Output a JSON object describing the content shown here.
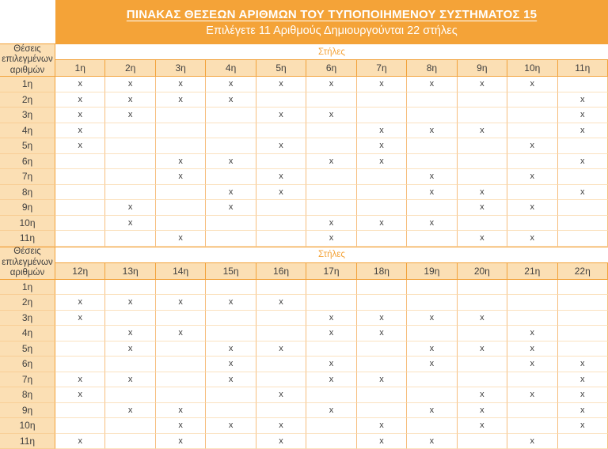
{
  "page": {
    "title": "ΠΙΝΑΚΑΣ ΘΕΣΕΩΝ ΑΡΙΘΜΩΝ ΤΟΥ ΤΥΠΟΠΟΙΗΜΕΝΟΥ ΣΥΣΤΗΜΑΤΟΣ 15",
    "subtitle": "Επιλέγετε 11 Αριθμούς Δημιουργούνται 22 στήλες"
  },
  "labels": {
    "corner": "Θέσεις επιλεγμένων αριθμών",
    "columns_group": "Στήλες",
    "mark": "x"
  },
  "colors": {
    "orange": "#F4A338",
    "header_fill": "#FBDFB4",
    "text_dark": "#3F3F3F",
    "white": "#FFFFFF"
  },
  "tables": [
    {
      "column_headers": [
        "1η",
        "2η",
        "3η",
        "4η",
        "5η",
        "6η",
        "7η",
        "8η",
        "9η",
        "10η",
        "11η"
      ],
      "rows": [
        {
          "header": "1η",
          "cells": [
            "x",
            "x",
            "x",
            "x",
            "x",
            "x",
            "x",
            "x",
            "x",
            "x",
            ""
          ]
        },
        {
          "header": "2η",
          "cells": [
            "x",
            "x",
            "x",
            "x",
            "",
            "",
            "",
            "",
            "",
            "",
            "x"
          ]
        },
        {
          "header": "3η",
          "cells": [
            "x",
            "x",
            "",
            "",
            "x",
            "x",
            "",
            "",
            "",
            "",
            "x"
          ]
        },
        {
          "header": "4η",
          "cells": [
            "x",
            "",
            "",
            "",
            "",
            "",
            "x",
            "x",
            "x",
            "",
            "x"
          ]
        },
        {
          "header": "5η",
          "cells": [
            "x",
            "",
            "",
            "",
            "x",
            "",
            "x",
            "",
            "",
            "x",
            ""
          ]
        },
        {
          "header": "6η",
          "cells": [
            "",
            "",
            "x",
            "x",
            "",
            "x",
            "x",
            "",
            "",
            "",
            "x"
          ]
        },
        {
          "header": "7η",
          "cells": [
            "",
            "",
            "x",
            "",
            "x",
            "",
            "",
            "x",
            "",
            "x",
            ""
          ]
        },
        {
          "header": "8η",
          "cells": [
            "",
            "",
            "",
            "x",
            "x",
            "",
            "",
            "x",
            "x",
            "",
            "x"
          ]
        },
        {
          "header": "9η",
          "cells": [
            "",
            "x",
            "",
            "x",
            "",
            "",
            "",
            "",
            "x",
            "x",
            ""
          ]
        },
        {
          "header": "10η",
          "cells": [
            "",
            "x",
            "",
            "",
            "",
            "x",
            "x",
            "x",
            "",
            "",
            ""
          ]
        },
        {
          "header": "11η",
          "cells": [
            "",
            "",
            "x",
            "",
            "",
            "x",
            "",
            "",
            "x",
            "x",
            ""
          ]
        }
      ]
    },
    {
      "column_headers": [
        "12η",
        "13η",
        "14η",
        "15η",
        "16η",
        "17η",
        "18η",
        "19η",
        "20η",
        "21η",
        "22η"
      ],
      "rows": [
        {
          "header": "1η",
          "cells": [
            "",
            "",
            "",
            "",
            "",
            "",
            "",
            "",
            "",
            "",
            ""
          ]
        },
        {
          "header": "2η",
          "cells": [
            "x",
            "x",
            "x",
            "x",
            "x",
            "",
            "",
            "",
            "",
            "",
            ""
          ]
        },
        {
          "header": "3η",
          "cells": [
            "x",
            "",
            "",
            "",
            "",
            "x",
            "x",
            "x",
            "x",
            "",
            ""
          ]
        },
        {
          "header": "4η",
          "cells": [
            "",
            "x",
            "x",
            "",
            "",
            "x",
            "x",
            "",
            "",
            "x",
            ""
          ]
        },
        {
          "header": "5η",
          "cells": [
            "",
            "x",
            "",
            "x",
            "x",
            "",
            "",
            "x",
            "x",
            "x",
            ""
          ]
        },
        {
          "header": "6η",
          "cells": [
            "",
            "",
            "",
            "x",
            "",
            "x",
            "",
            "x",
            "",
            "x",
            "x"
          ]
        },
        {
          "header": "7η",
          "cells": [
            "x",
            "x",
            "",
            "x",
            "",
            "x",
            "x",
            "",
            "",
            "",
            "x"
          ]
        },
        {
          "header": "8η",
          "cells": [
            "x",
            "",
            "",
            "",
            "x",
            "",
            "",
            "",
            "x",
            "x",
            "x"
          ]
        },
        {
          "header": "9η",
          "cells": [
            "",
            "x",
            "x",
            "",
            "",
            "x",
            "",
            "x",
            "x",
            "",
            "x"
          ]
        },
        {
          "header": "10η",
          "cells": [
            "",
            "",
            "x",
            "x",
            "x",
            "",
            "x",
            "",
            "x",
            "",
            "x"
          ]
        },
        {
          "header": "11η",
          "cells": [
            "x",
            "",
            "x",
            "",
            "x",
            "",
            "x",
            "x",
            "",
            "x",
            ""
          ]
        }
      ]
    }
  ]
}
